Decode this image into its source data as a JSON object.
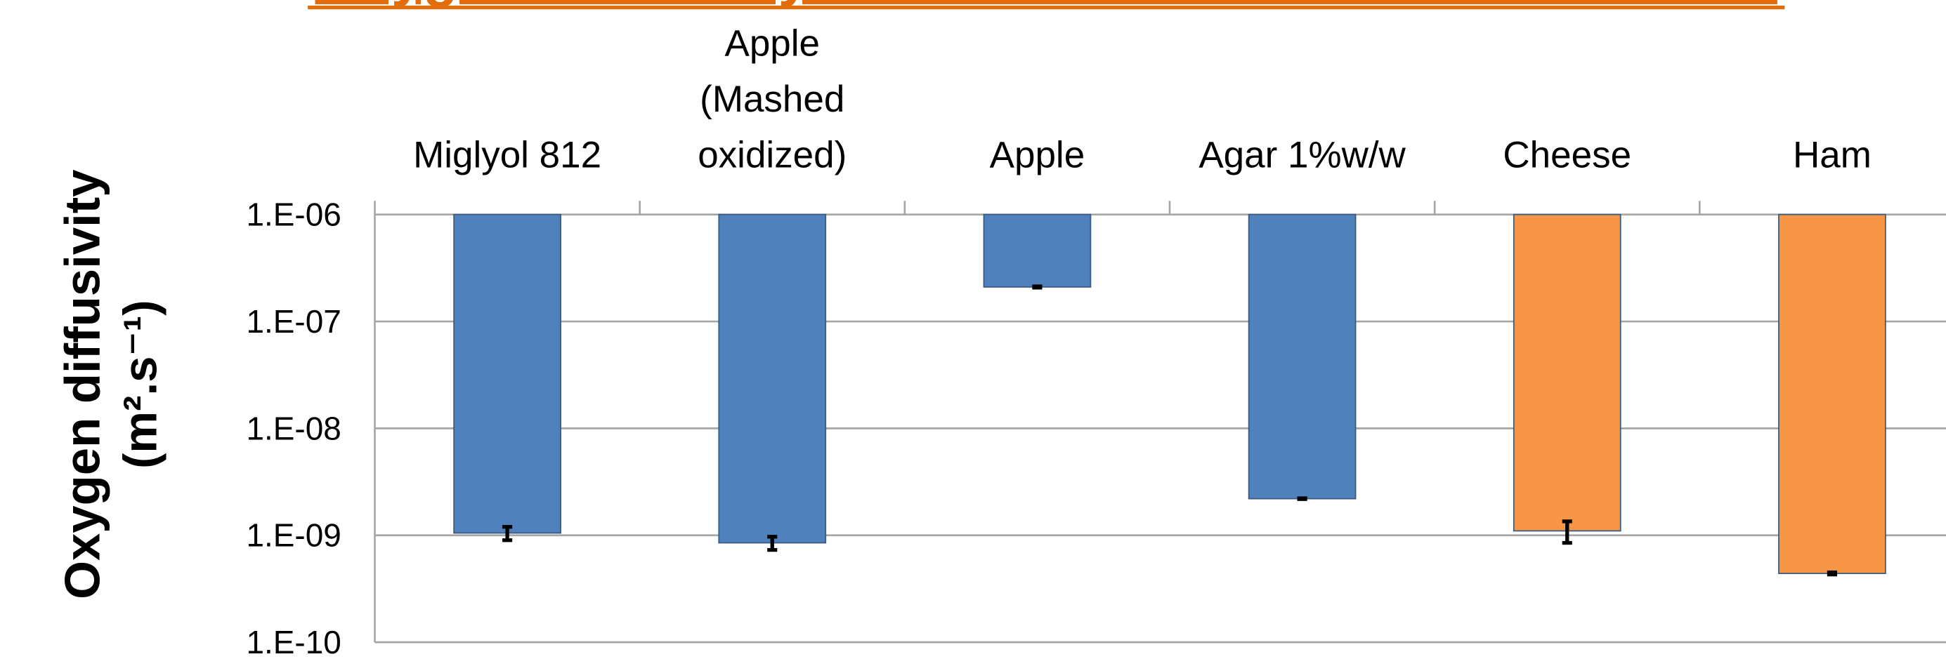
{
  "chart_data": {
    "type": "bar",
    "title": "Oxygen diffusivity in viscous and solid food matrices.",
    "y_label": [
      "Oxygen diffusivity",
      "(m².s⁻¹)"
    ],
    "categories": [
      "Miglyol 812",
      "Apple\n(Mashed\noxidized)",
      "Apple",
      "Agar 1%w/w",
      "Cheese",
      "Ham"
    ],
    "values": [
      1.05e-09,
      8.5e-10,
      2.1e-07,
      2.2e-09,
      1.1e-09,
      4.4e-10
    ],
    "errors": [
      1.5e-10,
      1.2e-10,
      3e-09,
      2e-11,
      2.5e-10,
      1e-11
    ],
    "colors": [
      "#4f81bd",
      "#4f81bd",
      "#4f81bd",
      "#4f81bd",
      "#f79646",
      "#f79646"
    ],
    "ylim": [
      1e-10,
      1e-06
    ],
    "yticks": [
      {
        "value": 1e-06,
        "label": "1.E-06"
      },
      {
        "value": 1e-07,
        "label": "1.E-07"
      },
      {
        "value": 1e-08,
        "label": "1.E-08"
      },
      {
        "value": 1e-09,
        "label": "1.E-09"
      },
      {
        "value": 1e-10,
        "label": "1.E-10"
      }
    ],
    "log_scale": true,
    "grid": true
  }
}
